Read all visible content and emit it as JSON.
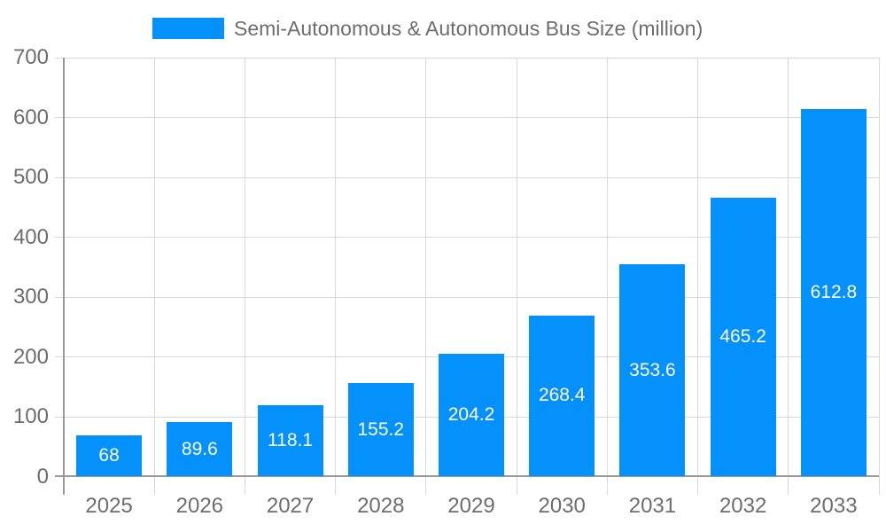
{
  "legend": {
    "label": "Semi-Autonomous & Autonomous Bus Size (million)"
  },
  "chart_data": {
    "type": "bar",
    "title": "Semi-Autonomous & Autonomous Bus Size (million)",
    "categories": [
      "2025",
      "2026",
      "2027",
      "2028",
      "2029",
      "2030",
      "2031",
      "2032",
      "2033"
    ],
    "values": [
      68,
      89.6,
      118.1,
      155.2,
      204.2,
      268.4,
      353.6,
      465.2,
      612.8
    ],
    "value_labels": [
      "68",
      "89.6",
      "118.1",
      "155.2",
      "204.2",
      "268.4",
      "353.6",
      "465.2",
      "612.8"
    ],
    "xlabel": "",
    "ylabel": "",
    "ylim": [
      0,
      700
    ],
    "yticks": [
      0,
      100,
      200,
      300,
      400,
      500,
      600,
      700
    ],
    "grid": true,
    "legend_position": "top",
    "bar_color": "#0591fb",
    "value_label_color": "#ffffff",
    "grid_color": "#d9d9d9",
    "axis_color": "#999999",
    "tick_text_color": "#6d6d6d",
    "background_color": "#ffffff"
  }
}
